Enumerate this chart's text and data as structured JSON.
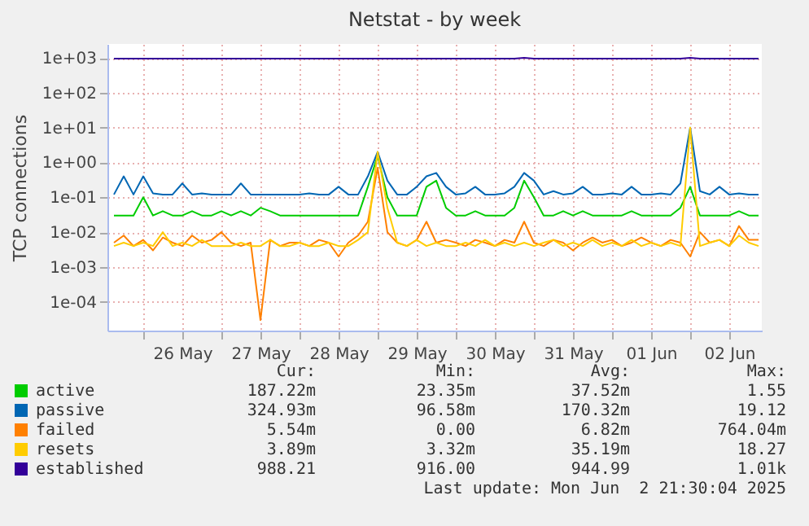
{
  "chart_data": {
    "type": "line",
    "title": "Netstat - by week",
    "ylabel": "TCP connections",
    "x": [
      "2025-05-25T15:00",
      "2025-05-25T18:00",
      "2025-05-25T21:00",
      "2025-05-26T00:00",
      "2025-05-26T03:00",
      "2025-05-26T06:00",
      "2025-05-26T09:00",
      "2025-05-26T12:00",
      "2025-05-26T15:00",
      "2025-05-26T18:00",
      "2025-05-26T21:00",
      "2025-05-27T00:00",
      "2025-05-27T03:00",
      "2025-05-27T06:00",
      "2025-05-27T09:00",
      "2025-05-27T12:00",
      "2025-05-27T15:00",
      "2025-05-27T18:00",
      "2025-05-27T21:00",
      "2025-05-28T00:00",
      "2025-05-28T03:00",
      "2025-05-28T06:00",
      "2025-05-28T09:00",
      "2025-05-28T12:00",
      "2025-05-28T15:00",
      "2025-05-28T18:00",
      "2025-05-28T21:00",
      "2025-05-29T00:00",
      "2025-05-29T03:00",
      "2025-05-29T06:00",
      "2025-05-29T09:00",
      "2025-05-29T12:00",
      "2025-05-29T15:00",
      "2025-05-29T18:00",
      "2025-05-29T21:00",
      "2025-05-30T00:00",
      "2025-05-30T03:00",
      "2025-05-30T06:00",
      "2025-05-30T09:00",
      "2025-05-30T12:00",
      "2025-05-30T15:00",
      "2025-05-30T18:00",
      "2025-05-30T21:00",
      "2025-05-31T00:00",
      "2025-05-31T03:00",
      "2025-05-31T06:00",
      "2025-05-31T09:00",
      "2025-05-31T12:00",
      "2025-05-31T15:00",
      "2025-05-31T18:00",
      "2025-05-31T21:00",
      "2025-06-01T00:00",
      "2025-06-01T03:00",
      "2025-06-01T06:00",
      "2025-06-01T09:00",
      "2025-06-01T12:00",
      "2025-06-01T15:00",
      "2025-06-01T18:00",
      "2025-06-01T21:00",
      "2025-06-02T00:00",
      "2025-06-02T03:00",
      "2025-06-02T06:00",
      "2025-06-02T09:00",
      "2025-06-02T12:00",
      "2025-06-02T15:00",
      "2025-06-02T18:00",
      "2025-06-02T21:00"
    ],
    "series": [
      {
        "name": "active",
        "color": "#00cc00",
        "values": [
          0.03,
          0.03,
          0.03,
          0.1,
          0.03,
          0.04,
          0.03,
          0.03,
          0.04,
          0.03,
          0.03,
          0.04,
          0.03,
          0.04,
          0.03,
          0.05,
          0.04,
          0.03,
          0.03,
          0.03,
          0.03,
          0.03,
          0.03,
          0.03,
          0.03,
          0.03,
          0.2,
          1.55,
          0.1,
          0.03,
          0.03,
          0.03,
          0.2,
          0.3,
          0.05,
          0.03,
          0.03,
          0.04,
          0.03,
          0.03,
          0.03,
          0.05,
          0.3,
          0.1,
          0.03,
          0.03,
          0.04,
          0.03,
          0.04,
          0.03,
          0.03,
          0.03,
          0.03,
          0.04,
          0.03,
          0.03,
          0.03,
          0.03,
          0.05,
          0.2,
          0.03,
          0.03,
          0.03,
          0.03,
          0.04,
          0.03,
          0.03
        ]
      },
      {
        "name": "passive",
        "color": "#0066b3",
        "values": [
          0.12,
          0.4,
          0.12,
          0.4,
          0.13,
          0.12,
          0.12,
          0.25,
          0.12,
          0.13,
          0.12,
          0.12,
          0.12,
          0.25,
          0.12,
          0.12,
          0.12,
          0.12,
          0.12,
          0.12,
          0.13,
          0.12,
          0.12,
          0.2,
          0.12,
          0.12,
          0.4,
          2,
          0.3,
          0.12,
          0.12,
          0.2,
          0.4,
          0.5,
          0.2,
          0.12,
          0.13,
          0.2,
          0.12,
          0.12,
          0.13,
          0.2,
          0.5,
          0.3,
          0.12,
          0.15,
          0.12,
          0.13,
          0.2,
          0.12,
          0.12,
          0.13,
          0.12,
          0.2,
          0.12,
          0.12,
          0.13,
          0.12,
          0.25,
          10,
          0.15,
          0.12,
          0.2,
          0.12,
          0.13,
          0.12,
          0.12
        ]
      },
      {
        "name": "failed",
        "color": "#ff8000",
        "values": [
          0.005,
          0.008,
          0.004,
          0.006,
          0.003,
          0.007,
          0.005,
          0.004,
          0.008,
          0.005,
          0.006,
          0.01,
          0.005,
          0.004,
          0.005,
          3e-05,
          0.006,
          0.004,
          0.005,
          0.005,
          0.004,
          0.006,
          0.005,
          0.002,
          0.005,
          0.008,
          0.02,
          0.7,
          0.01,
          0.005,
          0.004,
          0.006,
          0.02,
          0.005,
          0.006,
          0.005,
          0.004,
          0.006,
          0.005,
          0.004,
          0.006,
          0.005,
          0.02,
          0.005,
          0.004,
          0.006,
          0.005,
          0.003,
          0.005,
          0.007,
          0.005,
          0.006,
          0.004,
          0.005,
          0.007,
          0.005,
          0.004,
          0.006,
          0.005,
          0.002,
          0.01,
          0.005,
          0.006,
          0.004,
          0.015,
          0.006,
          0.006
        ]
      },
      {
        "name": "resets",
        "color": "#ffcc00",
        "values": [
          0.004,
          0.005,
          0.004,
          0.005,
          0.004,
          0.01,
          0.004,
          0.005,
          0.004,
          0.006,
          0.004,
          0.004,
          0.004,
          0.005,
          0.004,
          0.004,
          0.006,
          0.004,
          0.004,
          0.005,
          0.004,
          0.004,
          0.005,
          0.004,
          0.004,
          0.006,
          0.01,
          2,
          0.05,
          0.005,
          0.004,
          0.006,
          0.004,
          0.005,
          0.004,
          0.004,
          0.005,
          0.004,
          0.006,
          0.004,
          0.005,
          0.004,
          0.005,
          0.004,
          0.005,
          0.006,
          0.004,
          0.005,
          0.004,
          0.006,
          0.004,
          0.005,
          0.004,
          0.006,
          0.004,
          0.005,
          0.004,
          0.005,
          0.004,
          10,
          0.004,
          0.005,
          0.006,
          0.004,
          0.008,
          0.005,
          0.004
        ]
      },
      {
        "name": "established",
        "color": "#330099",
        "values": [
          950,
          950,
          950,
          950,
          950,
          950,
          950,
          950,
          950,
          950,
          950,
          950,
          950,
          950,
          950,
          950,
          950,
          950,
          950,
          950,
          950,
          950,
          950,
          950,
          950,
          950,
          950,
          950,
          950,
          950,
          950,
          950,
          950,
          950,
          950,
          950,
          950,
          950,
          950,
          950,
          950,
          950,
          1000,
          950,
          950,
          950,
          950,
          950,
          950,
          950,
          950,
          950,
          950,
          950,
          950,
          950,
          950,
          950,
          950,
          1000,
          950,
          950,
          950,
          950,
          950,
          950,
          950
        ]
      }
    ],
    "xlim": [
      "2025-05-25T13:00",
      "2025-06-02T22:00"
    ],
    "xticks": [
      {
        "value": "2025-05-26T00:00",
        "label": null
      },
      {
        "value": "2025-05-26T12:00",
        "label": "26 May"
      },
      {
        "value": "2025-05-27T00:00",
        "label": null
      },
      {
        "value": "2025-05-27T12:00",
        "label": "27 May"
      },
      {
        "value": "2025-05-28T00:00",
        "label": null
      },
      {
        "value": "2025-05-28T12:00",
        "label": "28 May"
      },
      {
        "value": "2025-05-29T00:00",
        "label": null
      },
      {
        "value": "2025-05-29T12:00",
        "label": "29 May"
      },
      {
        "value": "2025-05-30T00:00",
        "label": null
      },
      {
        "value": "2025-05-30T12:00",
        "label": "30 May"
      },
      {
        "value": "2025-05-31T00:00",
        "label": null
      },
      {
        "value": "2025-05-31T12:00",
        "label": "31 May"
      },
      {
        "value": "2025-06-01T00:00",
        "label": null
      },
      {
        "value": "2025-06-01T12:00",
        "label": "01 Jun"
      },
      {
        "value": "2025-06-02T00:00",
        "label": null
      },
      {
        "value": "2025-06-02T12:00",
        "label": "02 Jun"
      }
    ],
    "ylim": [
      1.5e-05,
      2500
    ],
    "yticks": [
      {
        "value": 0.0001,
        "label": "1e-04"
      },
      {
        "value": 0.001,
        "label": "1e-03"
      },
      {
        "value": 0.01,
        "label": "1e-02"
      },
      {
        "value": 0.1,
        "label": "1e-01"
      },
      {
        "value": 1,
        "label": "1e+00"
      },
      {
        "value": 10,
        "label": "1e+01"
      },
      {
        "value": 100,
        "label": "1e+02"
      },
      {
        "value": 1000,
        "label": "1e+03"
      }
    ],
    "log": "y",
    "grid": true,
    "legend": "bottom left",
    "marker": "none",
    "line_style": "solid",
    "annotations": [
      "Cur:",
      "Min:",
      "Avg:",
      "Max:",
      "187.22m",
      "23.35m",
      "37.52m",
      "1.55",
      "324.93m",
      "96.58m",
      "170.32m",
      "19.12",
      "5.54m",
      "0.00",
      "6.82m",
      "764.04m",
      "3.89m",
      "3.32m",
      "35.19m",
      "18.27",
      "988.21",
      "916.00",
      "944.99",
      "1.01k",
      "Last update: Mon Jun  2 21:30:04 2025"
    ]
  }
}
